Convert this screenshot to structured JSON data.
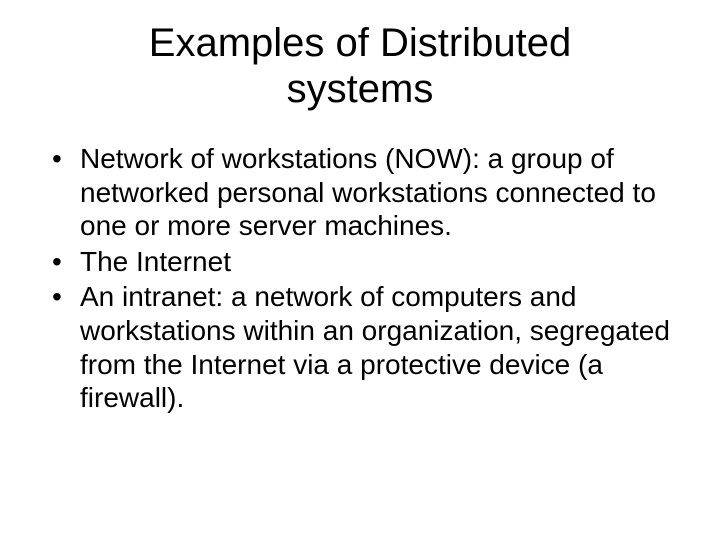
{
  "slide": {
    "title": "Examples of Distributed systems",
    "bullets": [
      "Network of workstations (NOW): a group of networked personal workstations connected to one or more server machines.",
      "The Internet",
      "An intranet: a network of computers and workstations within an organization, segregated from the Internet via a protective device (a firewall)."
    ]
  },
  "style": {
    "background_color": "#ffffff",
    "text_color": "#000000",
    "title_fontsize": 40,
    "body_fontsize": 28,
    "font_family": "Arial"
  }
}
